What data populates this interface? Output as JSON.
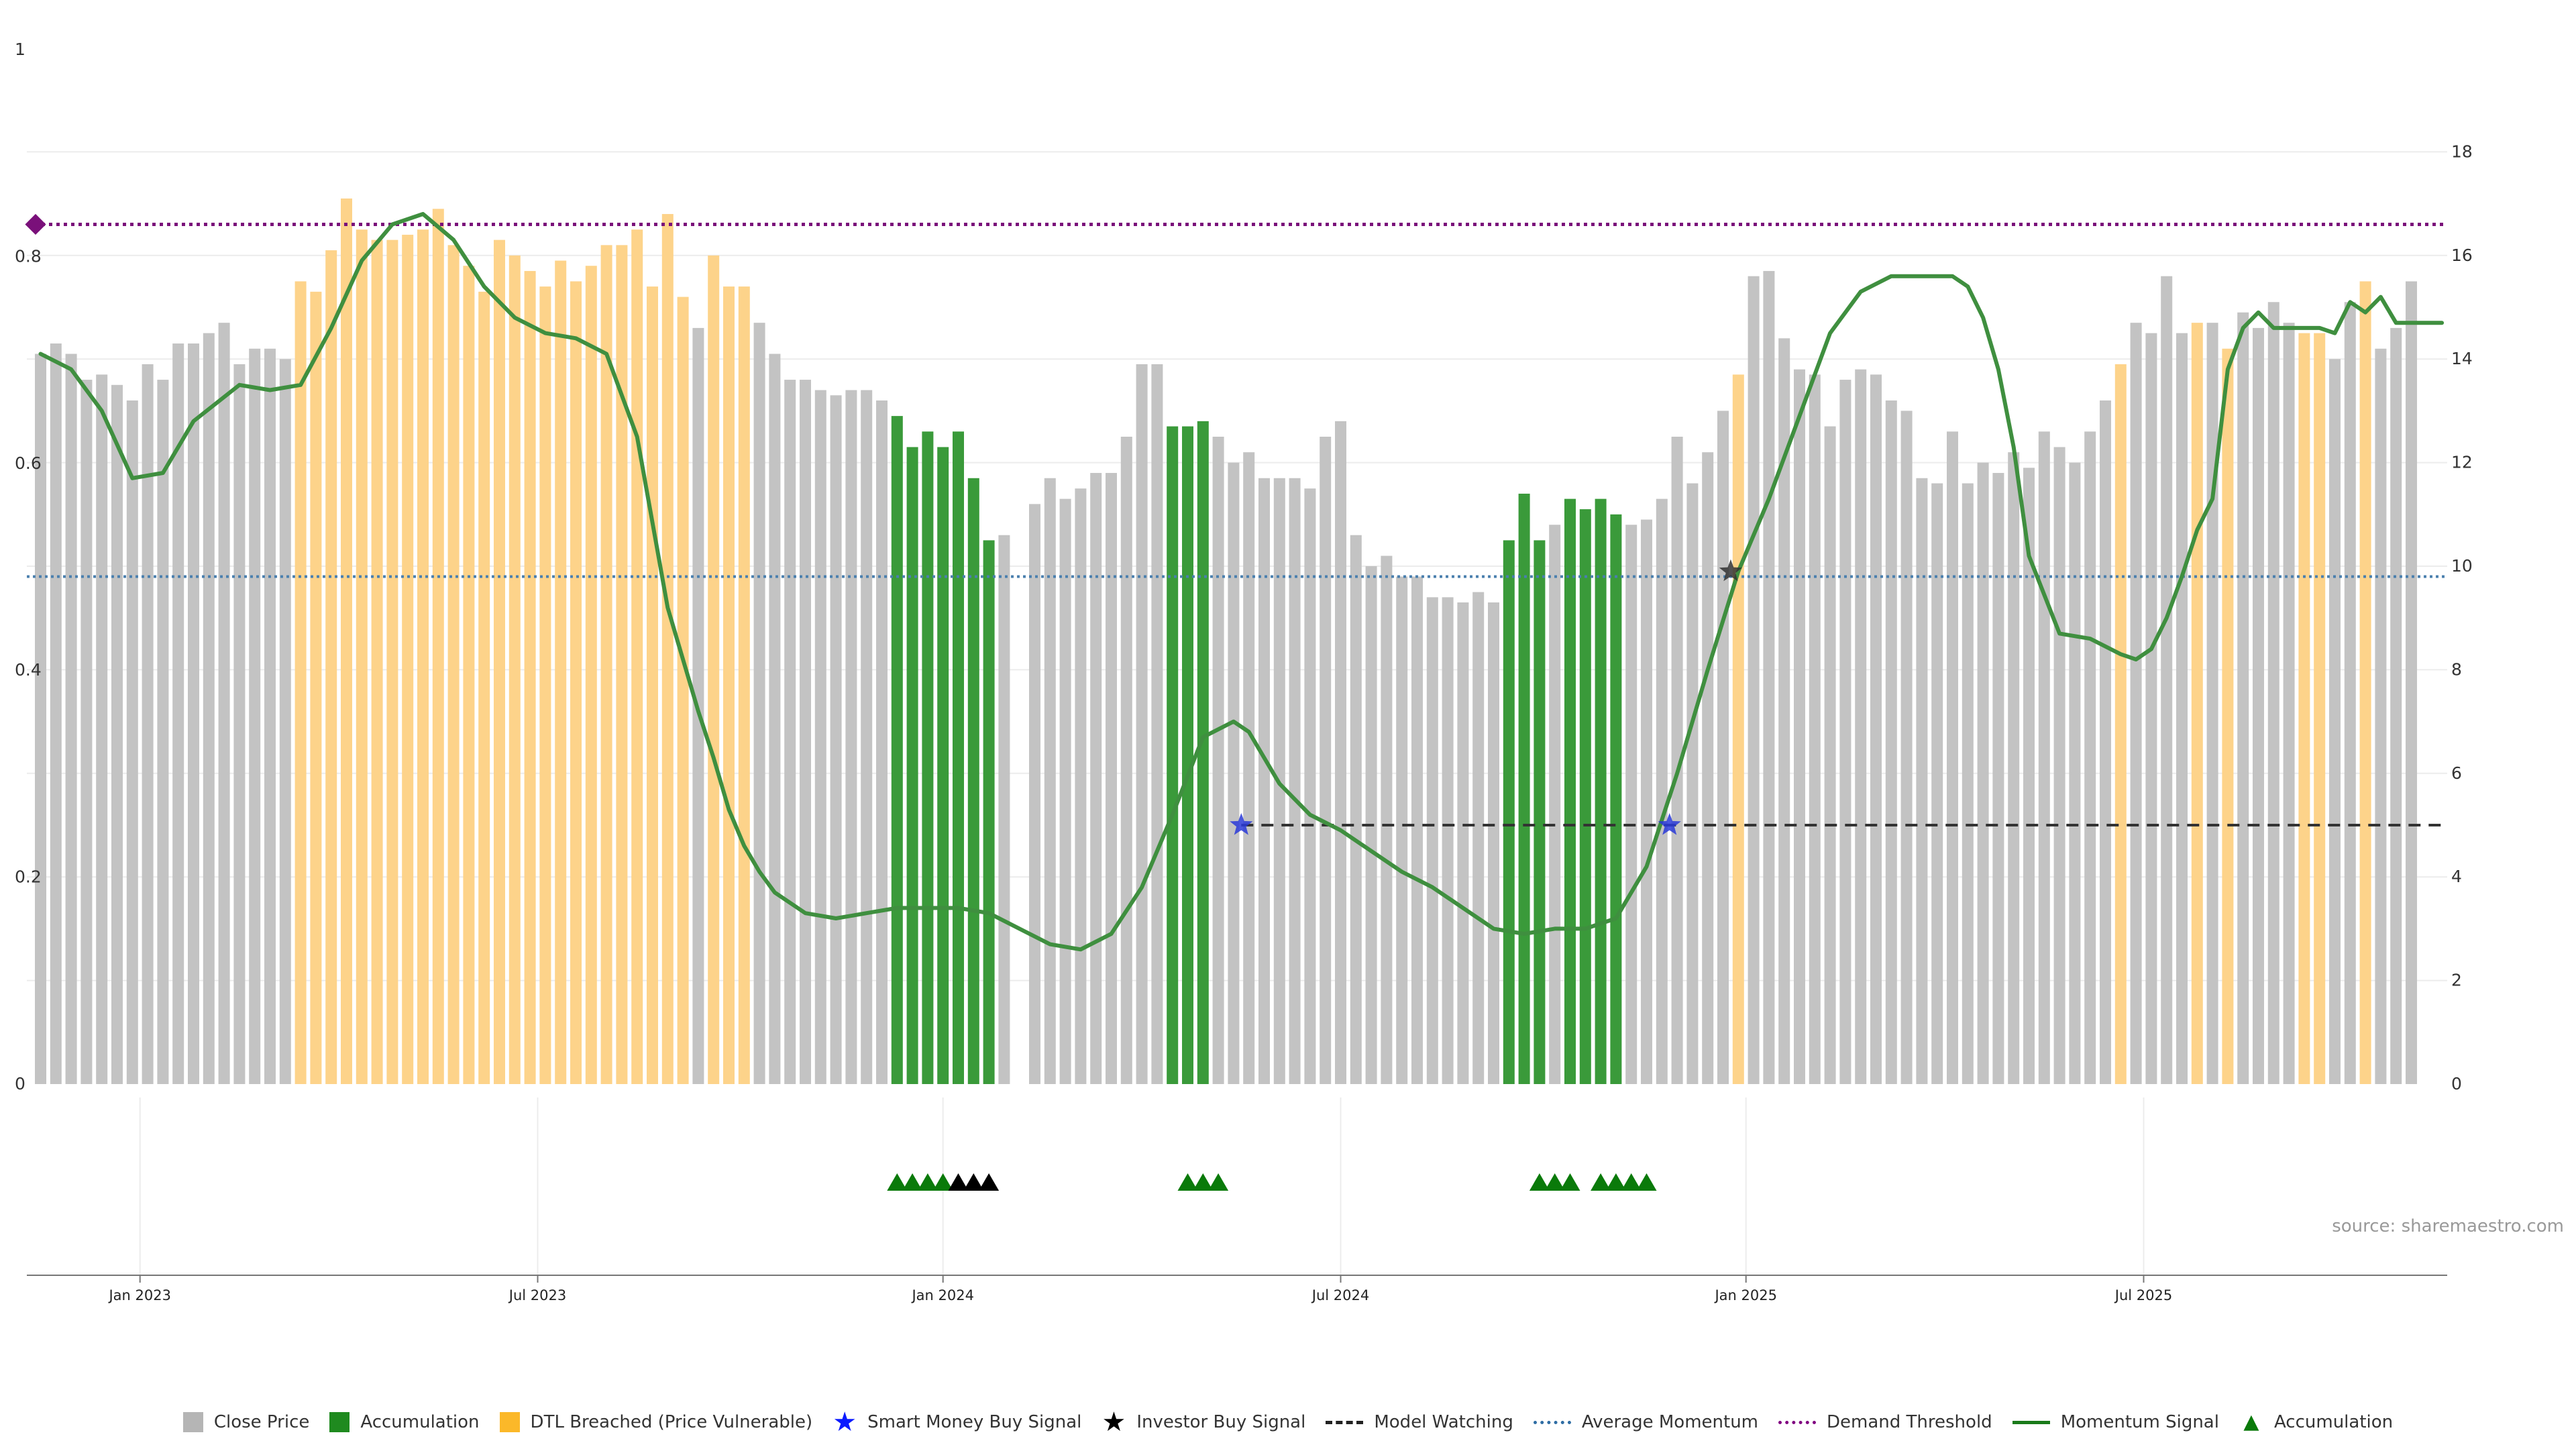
{
  "chart_data": {
    "type": "bar",
    "title": "",
    "left_axis": {
      "ticks": [
        "0",
        "0.2",
        "0.4",
        "0.6",
        "0.8",
        "1"
      ],
      "range": [
        0,
        1
      ]
    },
    "right_axis": {
      "ticks": [
        "0",
        "2",
        "4",
        "6",
        "8",
        "10",
        "12",
        "14",
        "16",
        "18"
      ],
      "range": [
        0,
        20
      ]
    },
    "x_ticks": [
      {
        "label": "Jan 2023",
        "bar_index": 6.5
      },
      {
        "label": "Jul 2023",
        "bar_index": 32.5
      },
      {
        "label": "Jan 2024",
        "bar_index": 59
      },
      {
        "label": "Jul 2024",
        "bar_index": 85
      },
      {
        "label": "Jan 2025",
        "bar_index": 111.5
      },
      {
        "label": "Jul 2025",
        "bar_index": 137.5
      }
    ],
    "close_price": [
      14.1,
      14.3,
      14.1,
      13.6,
      13.7,
      13.5,
      13.2,
      13.9,
      13.6,
      14.3,
      14.3,
      14.5,
      14.7,
      13.9,
      14.2,
      14.2,
      14.0,
      15.5,
      15.3,
      16.1,
      17.1,
      16.5,
      16.3,
      16.3,
      16.4,
      16.5,
      16.9,
      16.2,
      15.8,
      15.3,
      16.3,
      16.0,
      15.7,
      15.4,
      15.9,
      15.5,
      15.8,
      16.2,
      16.2,
      16.5,
      15.4,
      16.8,
      15.2,
      14.6,
      16.0,
      15.4,
      15.4,
      14.7,
      14.1,
      13.6,
      13.6,
      13.4,
      13.3,
      13.4,
      13.4,
      13.2,
      12.9,
      12.3,
      12.6,
      12.3,
      12.6,
      11.7,
      10.5,
      10.6,
      0.0,
      11.2,
      11.7,
      11.3,
      11.5,
      11.8,
      11.8,
      12.5,
      13.9,
      13.9,
      12.7,
      12.7,
      12.8,
      12.5,
      12.0,
      12.2,
      11.7,
      11.7,
      11.7,
      11.5,
      12.5,
      12.8,
      10.6,
      10.0,
      10.2,
      9.8,
      9.8,
      9.4,
      9.4,
      9.3,
      9.5,
      9.3,
      10.5,
      11.4,
      10.5,
      10.8,
      11.3,
      11.1,
      11.3,
      11.0,
      10.8,
      10.9,
      11.3,
      12.5,
      11.6,
      12.2,
      13.0,
      13.7,
      15.6,
      15.7,
      14.4,
      13.8,
      13.7,
      12.7,
      13.6,
      13.8,
      13.7,
      13.2,
      13.0,
      11.7,
      11.6,
      12.6,
      11.6,
      12.0,
      11.8,
      12.2,
      11.9,
      12.6,
      12.3,
      12.0,
      12.6,
      13.2,
      13.9,
      14.7,
      14.5,
      15.6,
      14.5,
      14.7,
      14.7,
      14.2,
      14.9,
      14.6,
      15.1,
      14.7,
      14.5,
      14.5,
      14.0,
      15.1,
      15.5,
      14.2,
      14.6,
      15.5
    ],
    "bar_category": [
      "close",
      "close",
      "close",
      "close",
      "close",
      "close",
      "close",
      "close",
      "close",
      "close",
      "close",
      "close",
      "close",
      "close",
      "close",
      "close",
      "close",
      "dtl",
      "dtl",
      "dtl",
      "dtl",
      "dtl",
      "dtl",
      "dtl",
      "dtl",
      "dtl",
      "dtl",
      "dtl",
      "dtl",
      "dtl",
      "dtl",
      "dtl",
      "dtl",
      "dtl",
      "dtl",
      "dtl",
      "dtl",
      "dtl",
      "dtl",
      "dtl",
      "dtl",
      "dtl",
      "dtl",
      "close",
      "dtl",
      "dtl",
      "dtl",
      "close",
      "close",
      "close",
      "close",
      "close",
      "close",
      "close",
      "close",
      "close",
      "accum",
      "accum",
      "accum",
      "accum",
      "accum",
      "accum",
      "accum",
      "close",
      "close",
      "close",
      "close",
      "close",
      "close",
      "close",
      "close",
      "close",
      "close",
      "close",
      "accum",
      "accum",
      "accum",
      "close",
      "close",
      "close",
      "close",
      "close",
      "close",
      "close",
      "close",
      "close",
      "close",
      "close",
      "close",
      "close",
      "close",
      "close",
      "close",
      "close",
      "close",
      "close",
      "accum",
      "accum",
      "accum",
      "close",
      "accum",
      "accum",
      "accum",
      "accum",
      "close",
      "close",
      "close",
      "close",
      "close",
      "close",
      "close",
      "dtl",
      "close",
      "close",
      "close",
      "close",
      "close",
      "close",
      "close",
      "close",
      "close",
      "close",
      "close",
      "close",
      "close",
      "close",
      "close",
      "close",
      "close",
      "close",
      "close",
      "close",
      "close",
      "close",
      "close",
      "close",
      "dtl",
      "close",
      "close",
      "close",
      "close",
      "dtl",
      "close",
      "dtl",
      "close",
      "close",
      "close",
      "close",
      "dtl",
      "dtl",
      "close",
      "close",
      "dtl"
    ],
    "momentum_signal": {
      "x": [
        0,
        2,
        4,
        6,
        8,
        10,
        13,
        15,
        17,
        19,
        21,
        23,
        25,
        27,
        29,
        31,
        33,
        35,
        37,
        39,
        41,
        43,
        44,
        45,
        46,
        47,
        48,
        50,
        52,
        54,
        56,
        58,
        60,
        62,
        64,
        66,
        68,
        70,
        72,
        74,
        76,
        78,
        79,
        80,
        81,
        83,
        85,
        87,
        89,
        91,
        93,
        95,
        97,
        99,
        101,
        103,
        105,
        107,
        109,
        111,
        113,
        115,
        117,
        119,
        121,
        123,
        124,
        125,
        126,
        127,
        128,
        129,
        130,
        132,
        134,
        136,
        137,
        138,
        139,
        140,
        141,
        142,
        143,
        144,
        145,
        146,
        147,
        148,
        149,
        150,
        151,
        152,
        153,
        154,
        155,
        156,
        157
      ],
      "y": [
        14.1,
        13.8,
        13.0,
        11.7,
        11.8,
        12.8,
        13.5,
        13.4,
        13.5,
        14.6,
        15.9,
        16.6,
        16.8,
        16.3,
        15.4,
        14.8,
        14.5,
        14.4,
        14.1,
        12.5,
        9.2,
        7.2,
        6.3,
        5.3,
        4.6,
        4.1,
        3.7,
        3.3,
        3.2,
        3.3,
        3.4,
        3.4,
        3.4,
        3.3,
        3.0,
        2.7,
        2.6,
        2.9,
        3.8,
        5.2,
        6.7,
        7.0,
        6.8,
        6.3,
        5.8,
        5.2,
        4.9,
        4.5,
        4.1,
        3.8,
        3.4,
        3.0,
        2.9,
        3.0,
        3.0,
        3.2,
        4.2,
        6.0,
        8.0,
        9.9,
        11.3,
        12.9,
        14.5,
        15.3,
        15.6,
        15.6,
        15.6,
        15.6,
        15.4,
        14.8,
        13.8,
        12.3,
        10.2,
        8.7,
        8.6,
        8.3,
        8.2,
        8.4,
        9.0,
        9.8,
        10.7,
        11.3,
        13.8,
        14.6,
        14.9,
        14.6,
        14.6,
        14.6,
        14.6,
        14.5,
        15.1,
        14.9,
        15.2,
        14.7,
        14.7,
        14.7,
        14.7
      ]
    },
    "thresholds": {
      "demand_threshold": 16.6,
      "average_momentum": 9.8,
      "model_watching": 5.0
    },
    "smart_money_buy_signals": [
      {
        "bar_index": 78.5,
        "value": 5.0
      },
      {
        "bar_index": 106.5,
        "value": 5.0
      }
    ],
    "investor_buy_signals": [
      {
        "bar_index": 110.5,
        "value": 9.9
      }
    ],
    "accumulation_markers": [
      {
        "bar_index": 56,
        "color": "green"
      },
      {
        "bar_index": 57,
        "color": "green"
      },
      {
        "bar_index": 58,
        "color": "green"
      },
      {
        "bar_index": 59,
        "color": "green"
      },
      {
        "bar_index": 60,
        "color": "black"
      },
      {
        "bar_index": 61,
        "color": "black"
      },
      {
        "bar_index": 62,
        "color": "black"
      },
      {
        "bar_index": 75,
        "color": "green"
      },
      {
        "bar_index": 76,
        "color": "green"
      },
      {
        "bar_index": 77,
        "color": "green"
      },
      {
        "bar_index": 98,
        "color": "green"
      },
      {
        "bar_index": 99,
        "color": "green"
      },
      {
        "bar_index": 100,
        "color": "green"
      },
      {
        "bar_index": 102,
        "color": "green"
      },
      {
        "bar_index": 103,
        "color": "green"
      },
      {
        "bar_index": 104,
        "color": "green"
      },
      {
        "bar_index": 105,
        "color": "green"
      }
    ],
    "source_text": "source: sharemaestro.com",
    "legend": [
      {
        "label": "Close Price",
        "kind": "square",
        "color": "#b5b5b5"
      },
      {
        "label": "Accumulation",
        "kind": "square",
        "color": "#1f8a1f"
      },
      {
        "label": "DTL Breached (Price Vulnerable)",
        "kind": "square",
        "color": "#fbb829"
      },
      {
        "label": "Smart Money Buy Signal",
        "kind": "star",
        "color": "#0a1aff"
      },
      {
        "label": "Investor Buy Signal",
        "kind": "star",
        "color": "#000000"
      },
      {
        "label": "Model Watching",
        "kind": "dashed",
        "color": "#222222"
      },
      {
        "label": "Average Momentum",
        "kind": "dotted",
        "color": "#2e6da4"
      },
      {
        "label": "Demand Threshold",
        "kind": "dotted",
        "color": "#800080"
      },
      {
        "label": "Momentum Signal",
        "kind": "solid",
        "color": "#1a7a1a"
      },
      {
        "label": "Accumulation",
        "kind": "triangle",
        "color": "#0a7a0a"
      }
    ],
    "colors": {
      "close": "#c3c3c3",
      "accum": "#3a9a3a",
      "dtl": "#fdd38a",
      "momentum": "#3f8f3f",
      "demand": "#7a107a",
      "average": "#4a7fae",
      "watching": "#333333",
      "grid": "#ececec"
    }
  }
}
